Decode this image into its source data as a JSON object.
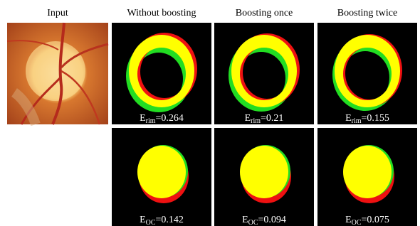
{
  "header": {
    "columns": [
      "Input",
      "Without boosting",
      "Boosting once",
      "Boosting twice"
    ]
  },
  "rows": [
    {
      "panels": [
        {
          "symbol": "E",
          "subscript": "rim",
          "value": "=0.264"
        },
        {
          "symbol": "E",
          "subscript": "rim",
          "value": "=0.21"
        },
        {
          "symbol": "E",
          "subscript": "rim",
          "value": "=0.155"
        }
      ]
    },
    {
      "panels": [
        {
          "symbol": "E",
          "subscript": "OC",
          "value": "=0.142"
        },
        {
          "symbol": "E",
          "subscript": "OC",
          "value": "=0.094"
        },
        {
          "symbol": "E",
          "subscript": "OC",
          "value": "=0.075"
        }
      ]
    }
  ]
}
